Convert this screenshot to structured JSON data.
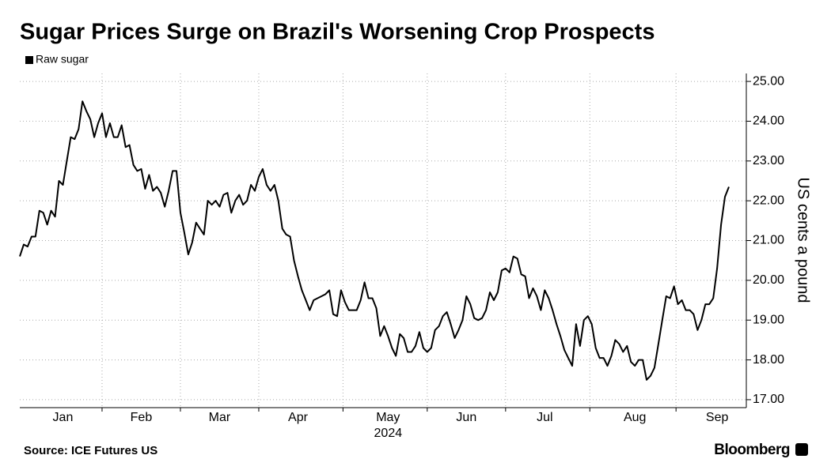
{
  "chart_data": {
    "type": "line",
    "title": "Sugar Prices Surge on Brazil's Worsening Crop Prospects",
    "y_label": "US cents a pound",
    "x_label": "2024",
    "source": "Source: ICE Futures US",
    "brand": "Bloomberg",
    "legend": "top-left",
    "grid": true,
    "ylim": [
      16.8,
      25.2
    ],
    "yticks": [
      {
        "value": 17,
        "label": "17.00"
      },
      {
        "value": 18,
        "label": "18.00"
      },
      {
        "value": 19,
        "label": "19.00"
      },
      {
        "value": 20,
        "label": "20.00"
      },
      {
        "value": 21,
        "label": "21.00"
      },
      {
        "value": 22,
        "label": "22.00"
      },
      {
        "value": 23,
        "label": "23.00"
      },
      {
        "value": 24,
        "label": "24.00"
      },
      {
        "value": 25,
        "label": "25.00"
      }
    ],
    "categories": [
      null,
      null,
      null,
      null,
      null,
      null,
      null,
      null,
      null,
      null,
      null,
      "Jan",
      null,
      null,
      null,
      null,
      null,
      null,
      null,
      null,
      null,
      null,
      null,
      null,
      null,
      null,
      null,
      null,
      null,
      null,
      null,
      "Feb",
      null,
      null,
      null,
      null,
      null,
      null,
      null,
      null,
      null,
      null,
      null,
      null,
      null,
      null,
      null,
      null,
      null,
      null,
      null,
      "Mar",
      null,
      null,
      null,
      null,
      null,
      null,
      null,
      null,
      null,
      null,
      null,
      null,
      null,
      null,
      null,
      null,
      null,
      null,
      null,
      "Apr",
      null,
      null,
      null,
      null,
      null,
      null,
      null,
      null,
      null,
      null,
      null,
      null,
      null,
      null,
      null,
      null,
      null,
      null,
      null,
      null,
      null,
      null,
      "May",
      null,
      null,
      null,
      null,
      null,
      null,
      null,
      null,
      null,
      null,
      null,
      null,
      null,
      null,
      null,
      null,
      null,
      null,
      null,
      "Jun",
      null,
      null,
      null,
      null,
      null,
      null,
      null,
      null,
      null,
      null,
      null,
      null,
      null,
      null,
      null,
      null,
      null,
      null,
      null,
      "Jul",
      null,
      null,
      null,
      null,
      null,
      null,
      null,
      null,
      null,
      null,
      null,
      null,
      null,
      null,
      null,
      null,
      null,
      null,
      null,
      null,
      null,
      null,
      "Aug",
      null,
      null,
      null,
      null,
      null,
      null,
      null,
      null,
      null,
      null,
      null,
      null,
      null,
      null,
      null,
      null,
      null,
      null,
      null,
      null,
      "Sep",
      null,
      null,
      null
    ],
    "series": [
      {
        "name": "Raw sugar",
        "color": "#000000",
        "values": [
          20.6,
          20.9,
          20.85,
          21.1,
          21.1,
          21.75,
          21.7,
          21.4,
          21.75,
          21.6,
          22.5,
          22.4,
          23.0,
          23.6,
          23.55,
          23.8,
          24.5,
          24.25,
          24.05,
          23.6,
          23.95,
          24.2,
          23.6,
          23.95,
          23.6,
          23.6,
          23.9,
          23.35,
          23.4,
          22.9,
          22.75,
          22.8,
          22.3,
          22.65,
          22.25,
          22.35,
          22.2,
          21.85,
          22.25,
          22.75,
          22.75,
          21.7,
          21.2,
          20.65,
          20.95,
          21.45,
          21.3,
          21.15,
          22.0,
          21.9,
          22.0,
          21.85,
          22.15,
          22.2,
          21.7,
          22.0,
          22.15,
          21.9,
          22.0,
          22.4,
          22.25,
          22.6,
          22.8,
          22.4,
          22.25,
          22.4,
          22.0,
          21.3,
          21.15,
          21.1,
          20.5,
          20.1,
          19.75,
          19.5,
          19.25,
          19.5,
          19.55,
          19.6,
          19.65,
          19.75,
          19.15,
          19.1,
          19.75,
          19.45,
          19.25,
          19.25,
          19.25,
          19.5,
          19.95,
          19.55,
          19.55,
          19.3,
          18.6,
          18.85,
          18.6,
          18.3,
          18.1,
          18.65,
          18.55,
          18.2,
          18.2,
          18.35,
          18.7,
          18.3,
          18.2,
          18.3,
          18.75,
          18.85,
          19.1,
          19.2,
          18.9,
          18.55,
          18.75,
          19.0,
          19.6,
          19.4,
          19.05,
          19.0,
          19.05,
          19.25,
          19.7,
          19.5,
          19.7,
          20.25,
          20.3,
          20.2,
          20.6,
          20.55,
          20.15,
          20.1,
          19.55,
          19.8,
          19.6,
          19.25,
          19.75,
          19.55,
          19.25,
          18.9,
          18.6,
          18.25,
          18.05,
          17.85,
          18.9,
          18.35,
          19.0,
          19.1,
          18.9,
          18.3,
          18.05,
          18.05,
          17.85,
          18.1,
          18.5,
          18.4,
          18.2,
          18.35,
          17.95,
          17.85,
          18.0,
          18.0,
          17.5,
          17.6,
          17.8,
          18.4,
          19.0,
          19.6,
          19.55,
          19.85,
          19.4,
          19.5,
          19.25,
          19.25,
          19.15,
          18.75,
          19.0,
          19.4,
          19.4,
          19.55,
          20.3,
          21.4,
          22.1,
          22.35
        ]
      }
    ]
  }
}
